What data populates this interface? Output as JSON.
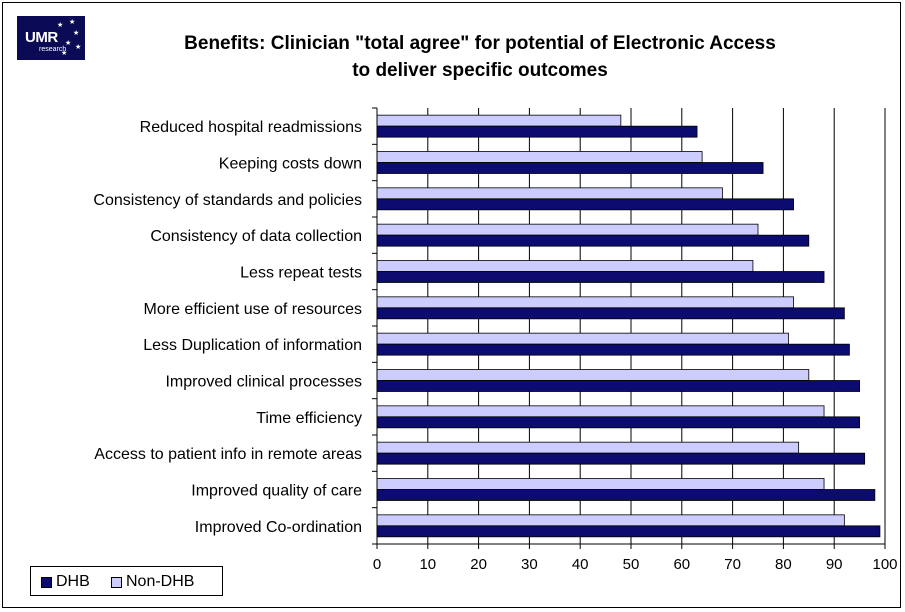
{
  "logo": {
    "brand": "UMR",
    "sub": "research"
  },
  "chart_data": {
    "type": "bar",
    "orientation": "horizontal",
    "title_line1": "Benefits: Clinician \"total agree\" for potential of Electronic Access",
    "title_line2": "to deliver specific outcomes",
    "categories": [
      "Reduced hospital readmissions",
      "Keeping costs down",
      "Consistency of standards and policies",
      "Consistency of data collection",
      "Less repeat tests",
      "More efficient use of resources",
      "Less Duplication of information",
      "Improved clinical processes",
      "Time efficiency",
      "Access to patient info in remote areas",
      "Improved quality of care",
      "Improved Co-ordination"
    ],
    "series": [
      {
        "name": "Non-DHB",
        "color": "#ccccff",
        "values": [
          48,
          64,
          68,
          75,
          74,
          82,
          81,
          85,
          88,
          83,
          88,
          92
        ]
      },
      {
        "name": "DHB",
        "color": "#0b0b70",
        "values": [
          63,
          76,
          82,
          85,
          88,
          92,
          93,
          95,
          95,
          96,
          98,
          99
        ]
      }
    ],
    "xlim": [
      0,
      100
    ],
    "xticks": [
      "0",
      "10",
      "20",
      "30",
      "40",
      "50",
      "60",
      "70",
      "80",
      "90",
      "100"
    ],
    "grid": true,
    "legend_position": "bottom-left",
    "legend_order": [
      "DHB",
      "Non-DHB"
    ]
  }
}
